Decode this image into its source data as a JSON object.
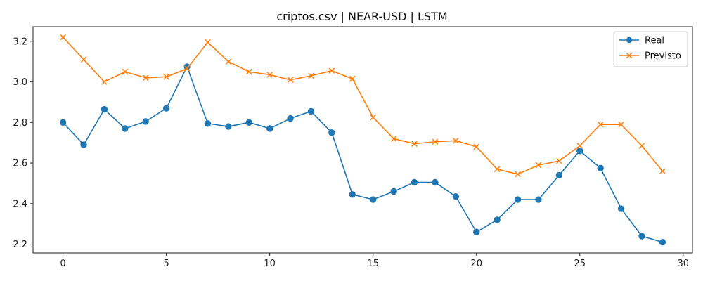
{
  "chart_data": {
    "type": "line",
    "title": "criptos.csv | NEAR-USD | LSTM",
    "xlabel": "",
    "ylabel": "",
    "x": [
      0,
      1,
      2,
      3,
      4,
      5,
      6,
      7,
      8,
      9,
      10,
      11,
      12,
      13,
      14,
      15,
      16,
      17,
      18,
      19,
      20,
      21,
      22,
      23,
      24,
      25,
      26,
      27,
      28,
      29
    ],
    "xlim": [
      -1.45,
      30.45
    ],
    "ylim": [
      2.157,
      3.272
    ],
    "xticks": [
      0,
      5,
      10,
      15,
      20,
      25,
      30
    ],
    "yticks": [
      2.2,
      2.4,
      2.6,
      2.8,
      3.0,
      3.2
    ],
    "xtick_labels": [
      "0",
      "5",
      "10",
      "15",
      "20",
      "25",
      "30"
    ],
    "ytick_labels": [
      "2.2",
      "2.4",
      "2.6",
      "2.8",
      "3.0",
      "3.2"
    ],
    "grid": false,
    "legend": "top-right",
    "series": [
      {
        "name": "Real",
        "color": "#1f77b4",
        "marker": "circle",
        "values": [
          2.8,
          2.69,
          2.865,
          2.77,
          2.805,
          2.87,
          3.075,
          2.795,
          2.78,
          2.8,
          2.77,
          2.82,
          2.855,
          2.75,
          2.445,
          2.42,
          2.46,
          2.505,
          2.505,
          2.435,
          2.26,
          2.32,
          2.42,
          2.42,
          2.54,
          2.66,
          2.575,
          2.375,
          2.24,
          2.21
        ]
      },
      {
        "name": "Previsto",
        "color": "#ff7f0e",
        "marker": "x",
        "values": [
          3.22,
          3.11,
          3.0,
          3.05,
          3.02,
          3.025,
          3.065,
          3.195,
          3.1,
          3.05,
          3.035,
          3.01,
          3.03,
          3.055,
          3.015,
          2.825,
          2.72,
          2.695,
          2.705,
          2.71,
          2.68,
          2.57,
          2.545,
          2.59,
          2.61,
          2.685,
          2.79,
          2.79,
          2.685,
          2.56
        ]
      }
    ]
  }
}
